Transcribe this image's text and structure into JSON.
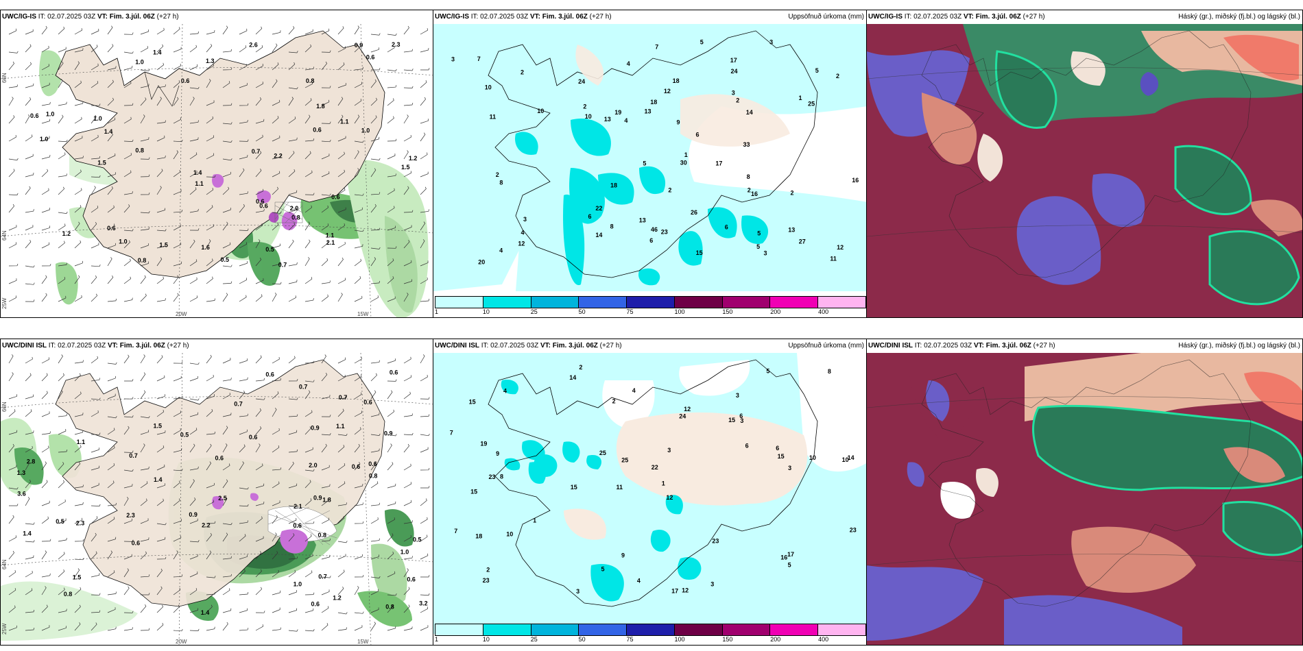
{
  "panels": [
    {
      "id": "p1",
      "title_bold": "UWC/IG-IS",
      "title_rest": " IT: 02.07.2025 03Z ",
      "title_vt": "VT: Fim. 3.júl. 06Z",
      "title_tail": " (+27 h)",
      "right": ""
    },
    {
      "id": "p2",
      "title_bold": "UWC/IG-IS",
      "title_rest": " IT: 02.07.2025 03Z ",
      "title_vt": "VT: Fim. 3.júl. 06Z",
      "title_tail": " (+27 h)",
      "right": "Uppsöfnuð úrkoma (mm)"
    },
    {
      "id": "p3",
      "title_bold": "UWC/IG-IS",
      "title_rest": " IT: 02.07.2025 03Z ",
      "title_vt": "VT: Fim. 3.júl. 06Z",
      "title_tail": " (+27 h)",
      "right": "Háský (gr.), miðský (fj.bl.) og lágský (bl.)"
    },
    {
      "id": "p4",
      "title_bold": "UWC/DINI ISL",
      "title_rest": " IT: 02.07.2025 03Z ",
      "title_vt": "VT: Fim. 3.júl. 06Z",
      "title_tail": " (+27 h)",
      "right": ""
    },
    {
      "id": "p5",
      "title_bold": "UWC/DINI ISL",
      "title_rest": " IT: 02.07.2025 03Z ",
      "title_vt": "VT: Fim. 3.júl. 06Z",
      "title_tail": " (+27 h)",
      "right": "Uppsöfnuð úrkoma (mm)"
    },
    {
      "id": "p6",
      "title_bold": "UWC/DINI ISL",
      "title_rest": " IT: 02.07.2025 03Z ",
      "title_vt": "VT: Fim. 3.júl. 06Z",
      "title_tail": " (+27 h)",
      "right": "Háský (gr.), miðský (fj.bl.) og lágský (bl.)"
    }
  ],
  "colorbar": {
    "colors": [
      "#c8ffff",
      "#00e6e6",
      "#00b4dc",
      "#3264e6",
      "#1e1eaa",
      "#6e0046",
      "#a0006e",
      "#f000b4",
      "#ffb4f0"
    ],
    "labels": [
      "1",
      "10",
      "25",
      "50",
      "75",
      "100",
      "150",
      "200",
      "400"
    ]
  },
  "axis_labels": {
    "lat66": "66N",
    "lat64": "64N",
    "lon20": "20W",
    "lon15": "15W",
    "lon25": "25W"
  },
  "wind_labels_top": [
    "0.7",
    "1.0",
    "0.6",
    "1.0",
    "1.1",
    "0.5",
    "1.5",
    "0.8",
    "1.1",
    "1.0",
    "1.2",
    "0.6",
    "1.4",
    "0.6",
    "0.6",
    "0.9",
    "1.0",
    "0.6",
    "0.6",
    "1.0",
    "1.1",
    "0.6",
    "0.8",
    "2.1",
    "2.2",
    "1.8",
    "1.5",
    "1.4",
    "0.5",
    "0.6",
    "0.8",
    "2.3",
    "0.8",
    "1.5",
    "1.4",
    "1.6",
    "2.6",
    "1.0",
    "1.2",
    "2.0",
    "1.3",
    "0.7"
  ],
  "precip_labels_top": [
    "4",
    "2",
    "1",
    "2",
    "4",
    "5",
    "13",
    "17",
    "5",
    "6",
    "11",
    "10",
    "8",
    "7",
    "6",
    "2",
    "2",
    "8",
    "5",
    "2",
    "3",
    "12",
    "6",
    "17",
    "16",
    "24",
    "19",
    "12",
    "25",
    "26",
    "27",
    "18",
    "18",
    "20",
    "30",
    "15",
    "46",
    "14",
    "11",
    "13",
    "10",
    "22",
    "24",
    "14",
    "33",
    "13",
    "18",
    "23",
    "16",
    "12",
    "10",
    "13",
    "7",
    "5",
    "3",
    "2",
    "1",
    "4",
    "6",
    "8",
    "9",
    "3",
    "2",
    "5",
    "3",
    "2",
    "3",
    "4"
  ],
  "wind_labels_bottom": [
    "0.6",
    "0.5",
    "0.6",
    "1.0",
    "1.0",
    "1.1",
    "0.6",
    "0.6",
    "0.6",
    "1.2",
    "0.9",
    "2.1",
    "1.4",
    "0.8",
    "0.6",
    "0.8",
    "0.6",
    "0.5",
    "0.7",
    "0.5",
    "2.2",
    "3.6",
    "2.0",
    "0.7",
    "0.8",
    "1.5",
    "1.1",
    "0.9",
    "3.2",
    "2.3",
    "0.9",
    "0.6",
    "2.8",
    "0.7",
    "1.4",
    "0.8",
    "0.6",
    "2.5",
    "1.8",
    "0.6",
    "0.9",
    "2.3",
    "0.7",
    "1.4",
    "1.3",
    "1.5",
    "0.6",
    "0.7"
  ],
  "precip_labels_bottom": [
    "2",
    "3",
    "10",
    "11",
    "12",
    "8",
    "15",
    "15",
    "15",
    "24",
    "22",
    "23",
    "14",
    "15",
    "17",
    "12",
    "9",
    "5",
    "6",
    "1",
    "9",
    "23",
    "14",
    "10",
    "7",
    "19",
    "25",
    "15",
    "17",
    "18",
    "16",
    "12",
    "10",
    "25",
    "23",
    "23",
    "6",
    "5",
    "8",
    "4",
    "2",
    "3",
    "3",
    "4",
    "4",
    "3",
    "5",
    "6",
    "7",
    "1",
    "2",
    "3",
    "3"
  ]
}
